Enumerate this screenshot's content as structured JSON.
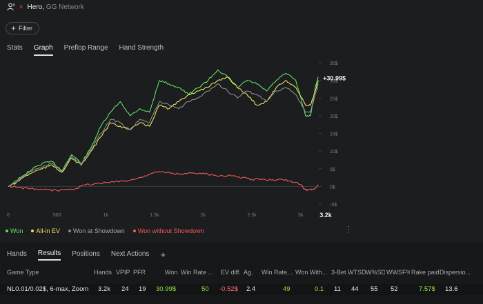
{
  "header": {
    "hero": "Hero",
    "separator": ",",
    "network": "GG Network"
  },
  "filter": {
    "label": "Filter"
  },
  "top_tabs": [
    {
      "label": "Stats",
      "active": false
    },
    {
      "label": "Graph",
      "active": true
    },
    {
      "label": "Preflop Range",
      "active": false
    },
    {
      "label": "Hand Strength",
      "active": false
    }
  ],
  "colors": {
    "won": "#5ee065",
    "allin_ev": "#e8e35a",
    "showdown": "#8c8c8c",
    "non_showdown": "#ef5b5b",
    "accent_green": "#8fe03c",
    "negative": "#ff6b6b"
  },
  "chart_data": {
    "type": "line",
    "x_ticks": [
      "0",
      "500",
      "1k",
      "1.5k",
      "2k",
      "2.5k",
      "3k"
    ],
    "x_end_label": "3.2k",
    "y_ticks": [
      "35$",
      "30$",
      "25$",
      "20$",
      "15$",
      "10$",
      "5$",
      "0$",
      "-5$"
    ],
    "xlim": [
      0,
      3200
    ],
    "ylim": [
      -5,
      35
    ],
    "end_label": "+30.99$",
    "series": [
      {
        "name": "Won",
        "color": "#5ee065",
        "x": [
          0,
          80,
          150,
          250,
          350,
          450,
          550,
          650,
          750,
          850,
          950,
          1050,
          1150,
          1250,
          1350,
          1450,
          1550,
          1650,
          1750,
          1850,
          1950,
          2050,
          2150,
          2250,
          2350,
          2450,
          2550,
          2650,
          2750,
          2850,
          2950,
          3050,
          3100,
          3150,
          3180
        ],
        "y": [
          0,
          1.5,
          3,
          5,
          6.5,
          7,
          4.5,
          9,
          6.5,
          11,
          17,
          21,
          24,
          20,
          22,
          21,
          30,
          29,
          28,
          26,
          28,
          30,
          33,
          31,
          28,
          30,
          29,
          27,
          30,
          32,
          30,
          20,
          20,
          28,
          31
        ]
      },
      {
        "name": "All-in EV",
        "color": "#e8e35a",
        "x": [
          0,
          80,
          150,
          250,
          350,
          450,
          550,
          650,
          750,
          850,
          950,
          1050,
          1150,
          1250,
          1350,
          1450,
          1550,
          1650,
          1750,
          1850,
          1950,
          2050,
          2150,
          2250,
          2350,
          2450,
          2550,
          2650,
          2750,
          2850,
          2950,
          3050,
          3100,
          3150,
          3180
        ],
        "y": [
          0,
          1.0,
          2.5,
          4,
          5,
          6,
          4,
          8,
          6,
          10,
          14,
          18,
          17,
          16,
          18,
          17,
          23,
          22,
          24,
          26,
          27,
          28,
          30,
          31,
          28,
          26,
          23,
          24,
          28,
          30,
          28,
          23,
          23,
          27,
          30
        ]
      },
      {
        "name": "Won at Showdown",
        "color": "#8c8c8c",
        "x": [
          0,
          80,
          150,
          250,
          350,
          450,
          550,
          650,
          750,
          850,
          950,
          1050,
          1150,
          1250,
          1350,
          1450,
          1550,
          1650,
          1750,
          1850,
          1950,
          2050,
          2150,
          2250,
          2350,
          2450,
          2550,
          2650,
          2750,
          2850,
          2950,
          3050,
          3100,
          3150,
          3180
        ],
        "y": [
          0,
          1.2,
          2.8,
          4.5,
          5.5,
          6.5,
          4.2,
          8.5,
          6.2,
          10.5,
          15,
          19,
          18,
          16,
          19,
          18,
          24,
          23,
          22,
          24,
          25,
          27,
          29,
          27,
          25,
          27,
          26,
          24,
          27,
          28,
          26,
          21,
          21,
          26,
          29
        ]
      },
      {
        "name": "Won without Showdown",
        "color": "#ef5b5b",
        "x": [
          0,
          100,
          200,
          300,
          400,
          500,
          600,
          700,
          800,
          900,
          1000,
          1100,
          1200,
          1300,
          1400,
          1500,
          1600,
          1700,
          1800,
          1900,
          2000,
          2100,
          2200,
          2300,
          2400,
          2500,
          2600,
          2700,
          2800,
          2900,
          3000,
          3050,
          3100,
          3150,
          3180
        ],
        "y": [
          0,
          -0.3,
          -0.6,
          -0.8,
          -1.0,
          -1.2,
          -0.8,
          -0.5,
          0.5,
          0.8,
          1.0,
          1.5,
          1.5,
          2.0,
          3.0,
          4.0,
          4.0,
          3.5,
          3.5,
          3.8,
          3.8,
          3.2,
          3.0,
          3.0,
          2.5,
          2.0,
          2.0,
          1.8,
          2.0,
          1.5,
          0.5,
          -1.0,
          -1.0,
          -0.5,
          0.5
        ]
      }
    ]
  },
  "legend": [
    {
      "label": "Won",
      "color": "#5ee065"
    },
    {
      "label": "All-in EV",
      "color": "#e8e35a"
    },
    {
      "label": "Won at Showdown",
      "color": "#8c8c8c"
    },
    {
      "label": "Won without Showdown",
      "color": "#ef5b5b"
    }
  ],
  "bottom_tabs": [
    {
      "label": "Hands",
      "active": false
    },
    {
      "label": "Results",
      "active": true
    },
    {
      "label": "Positions",
      "active": false
    },
    {
      "label": "Next Actions",
      "active": false
    }
  ],
  "table": {
    "headers": [
      "Game Type",
      "Hands",
      "VPIP",
      "PFR",
      "Won",
      "Win Rate ...",
      "EV diff.",
      "Ag.",
      "Win Rate, ...",
      "Won With...",
      "3-Bet",
      "WTSD",
      "W%SD",
      "WWSF%",
      "Rake paid",
      "Dispersio..."
    ],
    "row": [
      "NL0.01/0.02$, 6-max, Zoom",
      "3.2k",
      "24",
      "19",
      "30.99$",
      "50",
      "-0.52$",
      "2.4",
      "49",
      "0.1",
      "11",
      "44",
      "55",
      "52",
      "7.57$",
      "13.6"
    ]
  }
}
